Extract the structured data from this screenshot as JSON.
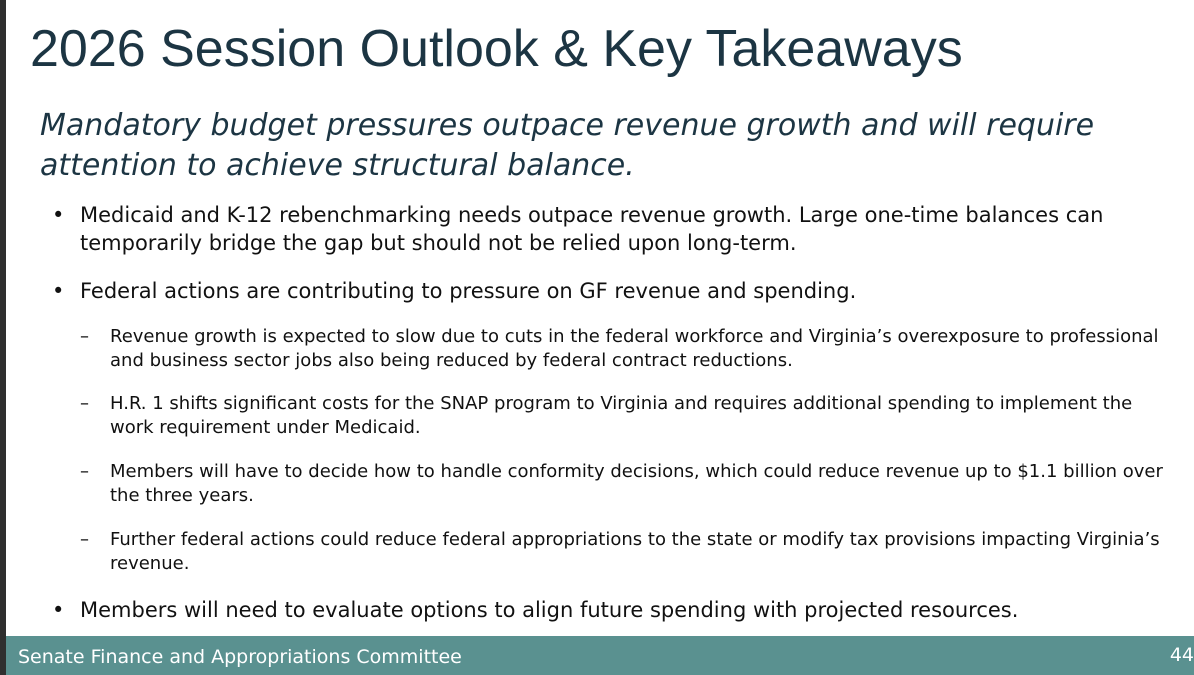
{
  "slide": {
    "title": "2026 Session Outlook & Key Takeaways",
    "subtitle": "Mandatory budget pressures outpace revenue growth and will require attention to achieve structural balance.",
    "bullet_marker": "•",
    "sub_marker": "–",
    "bullets": [
      {
        "text": "Medicaid and K-12 rebenchmarking needs outpace revenue growth. Large one-time balances can temporarily bridge the gap but should not be relied upon long-term."
      },
      {
        "text": "Federal actions are contributing to pressure on GF revenue and spending.",
        "sub_items": [
          "Revenue growth is expected to slow due to cuts in the federal workforce and Virginia’s overexposure to professional and business sector jobs also being reduced by federal contract reductions.",
          "H.R. 1 shifts significant costs for the SNAP program to Virginia and requires additional spending to implement the work requirement under Medicaid.",
          "Members will have to decide how to handle conformity decisions, which could reduce revenue up to $1.1 billion over the three years.",
          "Further federal actions could reduce federal appropriations to the state or modify tax provisions impacting Virginia’s revenue."
        ]
      },
      {
        "text": "Members will need to evaluate options to align future spending with projected resources."
      }
    ]
  },
  "footer": {
    "label": "Senate Finance and Appropriations Committee",
    "page_number": "44"
  },
  "colors": {
    "title": "#1c3543",
    "footer_bar": "#5a9190",
    "footer_text": "#ffffff",
    "left_rule": "#2f2f2f"
  }
}
